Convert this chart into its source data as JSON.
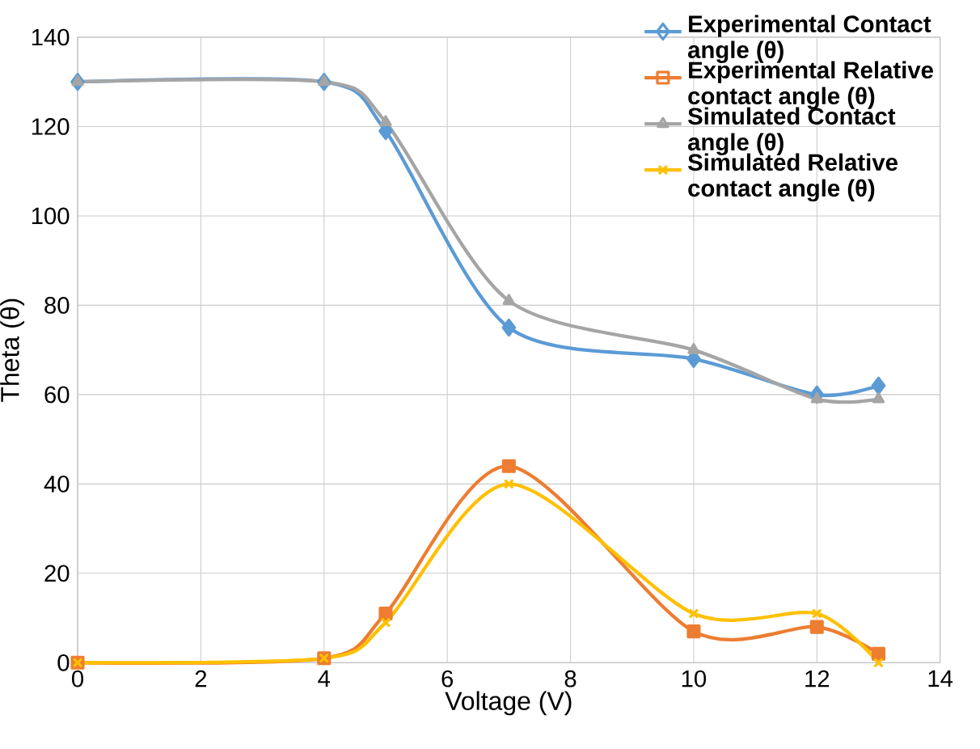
{
  "chart_data": {
    "type": "line",
    "xlabel": "Voltage (V)",
    "ylabel": "Theta (θ)",
    "xlim": [
      0,
      14
    ],
    "xticks": [
      0,
      2,
      4,
      6,
      8,
      10,
      12,
      14
    ],
    "ylim": [
      0,
      140
    ],
    "yticks": [
      0,
      20,
      40,
      60,
      80,
      100,
      120,
      140
    ],
    "grid": true,
    "legend": "top right",
    "x": [
      0,
      4,
      5,
      7,
      10,
      12,
      13
    ],
    "series": [
      {
        "name": "Experimental Contact angle (θ)",
        "color": "#5b9bd5",
        "marker": "diamond",
        "values": [
          130,
          130,
          119,
          75,
          68,
          60,
          62
        ]
      },
      {
        "name": "Experimental Relative contact angle (θ)",
        "color": "#ed7d31",
        "marker": "square",
        "values": [
          0,
          1,
          11,
          44,
          7,
          8,
          2
        ]
      },
      {
        "name": "Simulated Contact angle (θ)",
        "color": "#a5a5a5",
        "marker": "triangle",
        "values": [
          130,
          130,
          121,
          81,
          70,
          59,
          59
        ]
      },
      {
        "name": "Simulated Relative contact angle (θ)",
        "color": "#ffc000",
        "marker": "cross",
        "values": [
          0,
          1,
          9,
          40,
          11,
          11,
          0
        ]
      }
    ]
  }
}
